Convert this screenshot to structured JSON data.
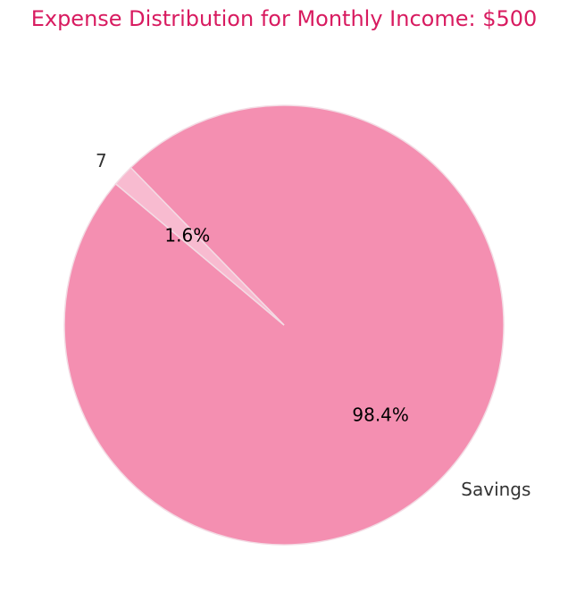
{
  "chart_data": {
    "type": "pie",
    "title": "Expense Distribution for Monthly Income: $500",
    "title_color": "#d81b60",
    "labels": [
      "Savings",
      "7"
    ],
    "values": [
      492,
      8
    ],
    "percent_labels": [
      "98.4%",
      "1.6%"
    ],
    "colors": [
      "#f48fb1",
      "#f8bbd0"
    ],
    "edge_color": "#f3dbe4",
    "start_angle_deg": 140,
    "direction": "counterclockwise"
  }
}
